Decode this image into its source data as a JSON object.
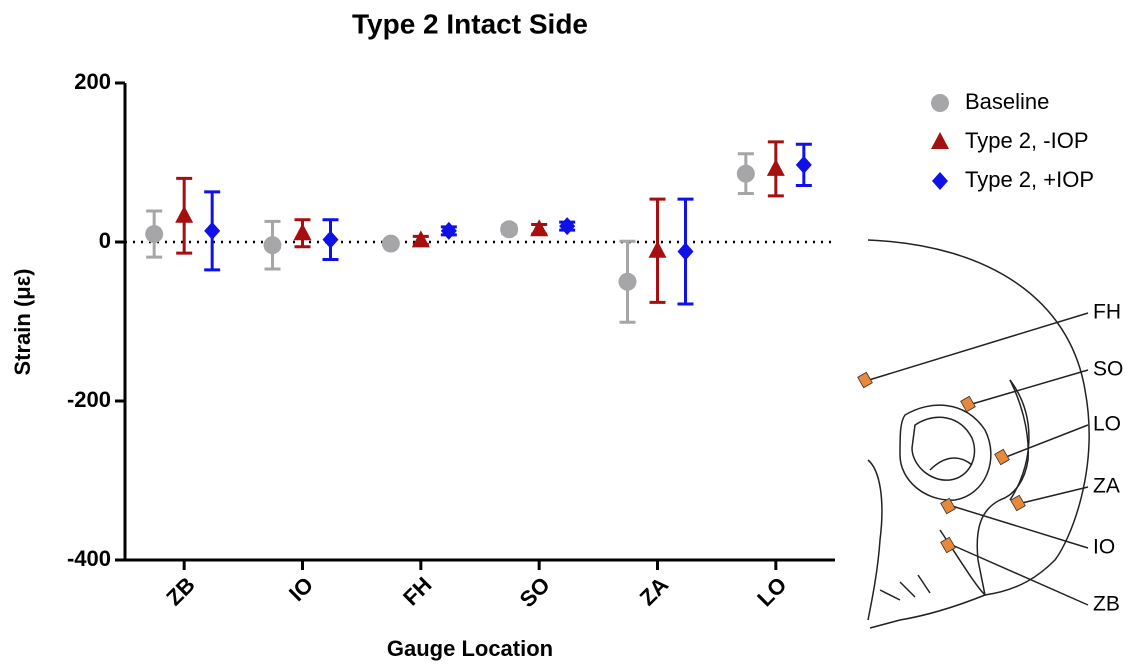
{
  "chart_data": {
    "type": "errorbar-scatter",
    "title": "Type 2 Intact Side",
    "x_label": "Gauge Location",
    "y_label": "Strain (με)",
    "categories": [
      "ZB",
      "IO",
      "FH",
      "SO",
      "ZA",
      "LO"
    ],
    "ylim": [
      -400,
      200
    ],
    "yticks": [
      200,
      0,
      -200,
      -400
    ],
    "hline": 0,
    "series": [
      {
        "name": "Baseline",
        "color": "#a6a6a8",
        "marker": "circle",
        "values": [
          10,
          -4,
          -2,
          16,
          -50,
          86
        ],
        "errors": [
          29,
          30,
          3,
          5,
          51,
          25
        ]
      },
      {
        "name": "Type 2, -IOP",
        "color": "#a50f0f",
        "marker": "triangle",
        "values": [
          33,
          11,
          2,
          16,
          -11,
          92
        ],
        "errors": [
          47,
          17,
          5,
          6,
          65,
          34
        ]
      },
      {
        "name": "Type 2, +IOP",
        "color": "#1010e8",
        "marker": "diamond",
        "values": [
          14,
          3,
          14,
          20,
          -12,
          97
        ],
        "errors": [
          49,
          25,
          5,
          5,
          66,
          26
        ]
      }
    ]
  },
  "diagram": {
    "labels": [
      "FH",
      "SO",
      "LO",
      "ZA",
      "IO",
      "ZB"
    ]
  }
}
